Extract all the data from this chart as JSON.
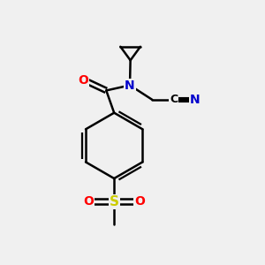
{
  "background_color": "#f0f0f0",
  "bond_color": "#000000",
  "atom_colors": {
    "O": "#ff0000",
    "N": "#0000cc",
    "S": "#cccc00",
    "C_label": "#000000"
  },
  "figsize": [
    3.0,
    3.0
  ],
  "dpi": 100
}
